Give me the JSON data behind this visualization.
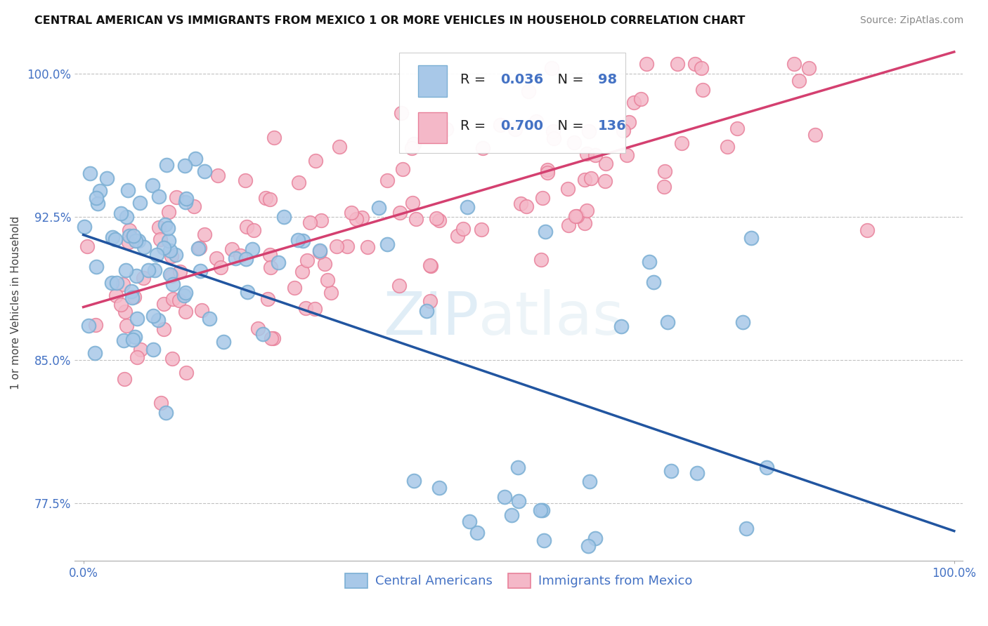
{
  "title": "CENTRAL AMERICAN VS IMMIGRANTS FROM MEXICO 1 OR MORE VEHICLES IN HOUSEHOLD CORRELATION CHART",
  "source": "Source: ZipAtlas.com",
  "ylabel": "1 or more Vehicles in Household",
  "blue_label": "Central Americans",
  "pink_label": "Immigrants from Mexico",
  "blue_R": 0.036,
  "blue_N": 98,
  "pink_R": 0.7,
  "pink_N": 136,
  "xlim": [
    -0.01,
    1.01
  ],
  "ylim": [
    0.745,
    1.015
  ],
  "yticks": [
    0.775,
    0.85,
    0.925,
    1.0
  ],
  "ytick_labels": [
    "77.5%",
    "85.0%",
    "92.5%",
    "100.0%"
  ],
  "xtick_labels": [
    "0.0%",
    "100.0%"
  ],
  "xticks": [
    0.0,
    1.0
  ],
  "watermark_zip": "ZIP",
  "watermark_atlas": "atlas",
  "blue_scatter_color": "#a8c8e8",
  "blue_edge_color": "#7bafd4",
  "pink_scatter_color": "#f4b8c8",
  "pink_edge_color": "#e8809a",
  "blue_line_color": "#2155a0",
  "pink_line_color": "#d44070",
  "background_color": "#ffffff",
  "title_fontsize": 11.5,
  "source_fontsize": 10,
  "tick_fontsize": 12,
  "ylabel_fontsize": 11,
  "seed": 123
}
